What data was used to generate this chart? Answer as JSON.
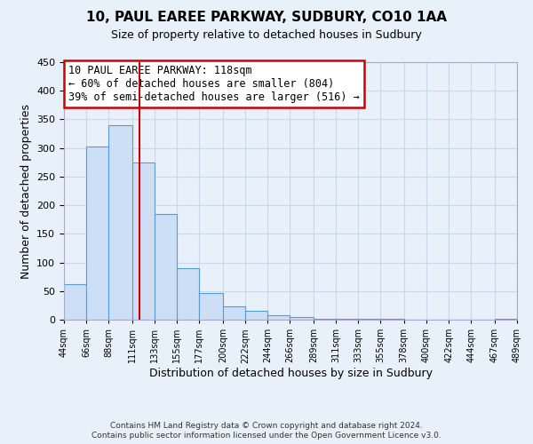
{
  "title": "10, PAUL EAREE PARKWAY, SUDBURY, CO10 1AA",
  "subtitle": "Size of property relative to detached houses in Sudbury",
  "xlabel": "Distribution of detached houses by size in Sudbury",
  "ylabel": "Number of detached properties",
  "bar_left_edges": [
    44,
    66,
    88,
    111,
    133,
    155,
    177,
    200,
    222,
    244,
    266,
    289,
    311,
    333,
    355,
    378,
    400,
    422,
    444,
    467
  ],
  "bar_widths": [
    22,
    22,
    23,
    22,
    22,
    22,
    23,
    22,
    22,
    22,
    23,
    22,
    22,
    22,
    23,
    22,
    22,
    22,
    23,
    22
  ],
  "bar_heights": [
    62,
    302,
    340,
    275,
    184,
    90,
    46,
    24,
    16,
    8,
    5,
    2,
    1,
    1,
    1,
    0,
    0,
    0,
    0,
    1
  ],
  "bar_color": "#ccdff5",
  "bar_edge_color": "#5b9bd5",
  "grid_color": "#c8d8ec",
  "background_color": "#e8f0fa",
  "property_line_x": 118,
  "property_line_color": "#cc0000",
  "ylim": [
    0,
    450
  ],
  "yticks": [
    0,
    50,
    100,
    150,
    200,
    250,
    300,
    350,
    400,
    450
  ],
  "tick_labels": [
    "44sqm",
    "66sqm",
    "88sqm",
    "111sqm",
    "133sqm",
    "155sqm",
    "177sqm",
    "200sqm",
    "222sqm",
    "244sqm",
    "266sqm",
    "289sqm",
    "311sqm",
    "333sqm",
    "355sqm",
    "378sqm",
    "400sqm",
    "422sqm",
    "444sqm",
    "467sqm",
    "489sqm"
  ],
  "annotation_text": "10 PAUL EAREE PARKWAY: 118sqm\n← 60% of detached houses are smaller (804)\n39% of semi-detached houses are larger (516) →",
  "annotation_box_color": "#ffffff",
  "annotation_border_color": "#cc0000",
  "footnote1": "Contains HM Land Registry data © Crown copyright and database right 2024.",
  "footnote2": "Contains public sector information licensed under the Open Government Licence v3.0."
}
